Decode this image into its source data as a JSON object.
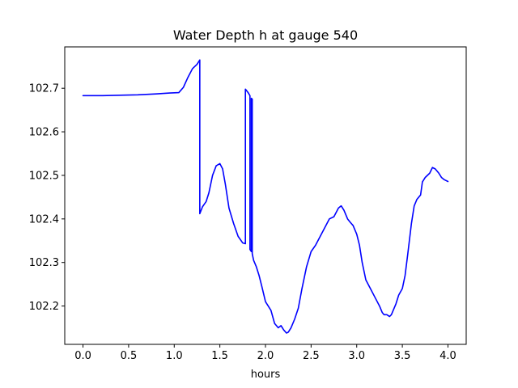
{
  "chart_data": {
    "type": "line",
    "title": "Water Depth h at gauge 540",
    "xlabel": "hours",
    "ylabel": "",
    "xlim": [
      -0.2,
      4.2
    ],
    "ylim": [
      102.112,
      102.795
    ],
    "xticks": [
      0.0,
      0.5,
      1.0,
      1.5,
      2.0,
      2.5,
      3.0,
      3.5,
      4.0
    ],
    "xtick_labels": [
      "0.0",
      "0.5",
      "1.0",
      "1.5",
      "2.0",
      "2.5",
      "3.0",
      "3.5",
      "4.0"
    ],
    "yticks": [
      102.2,
      102.3,
      102.4,
      102.5,
      102.6,
      102.7
    ],
    "ytick_labels": [
      "102.2",
      "102.3",
      "102.4",
      "102.5",
      "102.6",
      "102.7"
    ],
    "grid": false,
    "color": "#0000ff",
    "series": [
      {
        "x": [
          0.0,
          0.2,
          0.4,
          0.6,
          0.8,
          0.95,
          1.05,
          1.1,
          1.15,
          1.2,
          1.25,
          1.28,
          1.28,
          1.31,
          1.35,
          1.38,
          1.42,
          1.46,
          1.5,
          1.53,
          1.56,
          1.6,
          1.65,
          1.7,
          1.75,
          1.78,
          1.78,
          1.81,
          1.83,
          1.83,
          1.845,
          1.845,
          1.855,
          1.855,
          1.87,
          1.9,
          1.93,
          1.96,
          2.0,
          2.03,
          2.06,
          2.1,
          2.14,
          2.17,
          2.2,
          2.23,
          2.25,
          2.28,
          2.32,
          2.36,
          2.4,
          2.45,
          2.5,
          2.55,
          2.6,
          2.65,
          2.7,
          2.75,
          2.8,
          2.83,
          2.86,
          2.9,
          2.93,
          2.96,
          3.0,
          3.03,
          3.06,
          3.1,
          3.15,
          3.2,
          3.25,
          3.28,
          3.3,
          3.33,
          3.36,
          3.38,
          3.4,
          3.43,
          3.46,
          3.5,
          3.53,
          3.56,
          3.6,
          3.63,
          3.66,
          3.7,
          3.72,
          3.75,
          3.8,
          3.83,
          3.86,
          3.9,
          3.93,
          3.96,
          4.0
        ],
        "y": [
          102.683,
          102.683,
          102.684,
          102.685,
          102.687,
          102.689,
          102.69,
          102.702,
          102.725,
          102.745,
          102.755,
          102.765,
          102.412,
          102.428,
          102.44,
          102.46,
          102.5,
          102.522,
          102.527,
          102.515,
          102.48,
          102.425,
          102.39,
          102.36,
          102.345,
          102.343,
          102.698,
          102.69,
          102.683,
          102.33,
          102.325,
          102.677,
          102.675,
          102.32,
          102.305,
          102.29,
          102.27,
          102.245,
          102.21,
          102.2,
          102.19,
          102.16,
          102.15,
          102.155,
          102.145,
          102.138,
          102.14,
          102.15,
          102.17,
          102.195,
          102.24,
          102.29,
          102.325,
          102.34,
          102.36,
          102.38,
          102.4,
          102.405,
          102.425,
          102.43,
          102.42,
          102.4,
          102.392,
          102.385,
          102.365,
          102.34,
          102.3,
          102.26,
          102.24,
          102.22,
          102.2,
          102.185,
          102.18,
          102.18,
          102.176,
          102.18,
          102.19,
          102.205,
          102.225,
          102.24,
          102.27,
          102.32,
          102.39,
          102.43,
          102.445,
          102.455,
          102.485,
          102.495,
          102.505,
          102.518,
          102.515,
          102.505,
          102.495,
          102.49,
          102.486
        ]
      }
    ]
  }
}
